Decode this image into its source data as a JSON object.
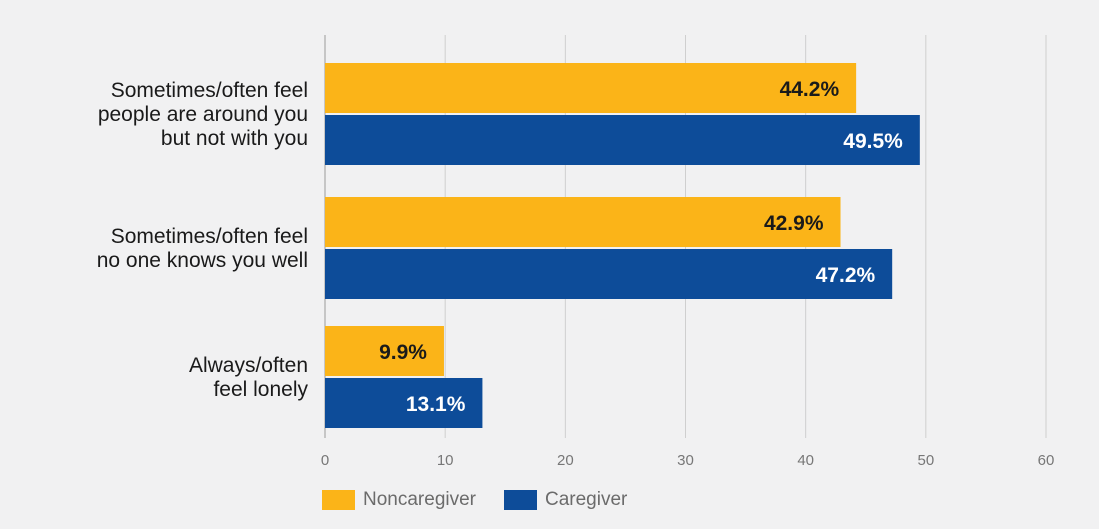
{
  "colors": {
    "noncaregiver": "#fbb418",
    "caregiver": "#0d4c99",
    "grid": "#cfcfcf",
    "background": "#f1f1f2"
  },
  "chart_data": {
    "type": "bar",
    "orientation": "horizontal",
    "categories": [
      [
        "Sometimes/often feel",
        "people are around you",
        "but not with you"
      ],
      [
        "Sometimes/often feel",
        "no one knows you well"
      ],
      [
        "Always/often",
        "feel lonely"
      ]
    ],
    "series": [
      {
        "name": "Noncaregiver",
        "values": [
          44.2,
          42.9,
          9.9
        ],
        "labels": [
          "44.2%",
          "42.9%",
          "9.9%"
        ],
        "label_color": "#1a1a1a"
      },
      {
        "name": "Caregiver",
        "values": [
          49.5,
          47.2,
          13.1
        ],
        "labels": [
          "49.5%",
          "47.2%",
          "13.1%"
        ],
        "label_color": "#ffffff"
      }
    ],
    "xlim": [
      0,
      60
    ],
    "xticks": [
      0,
      10,
      20,
      30,
      40,
      50,
      60
    ],
    "grid": true,
    "legend_position": "bottom-left"
  }
}
